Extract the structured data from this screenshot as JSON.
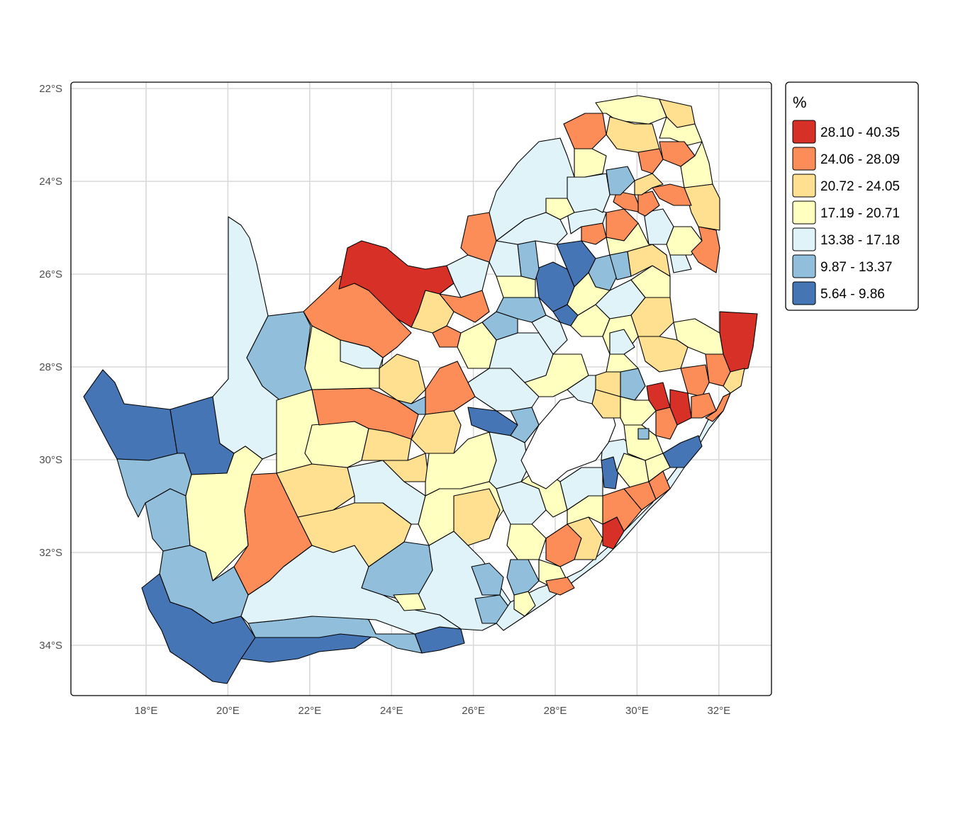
{
  "map": {
    "x_ticks": [
      "18°E",
      "20°E",
      "22°E",
      "24°E",
      "26°E",
      "28°E",
      "30°E",
      "32°E"
    ],
    "y_ticks": [
      "22°S",
      "24°S",
      "26°S",
      "28°S",
      "30°S",
      "32°S",
      "34°S"
    ],
    "x_tick_values": [
      18,
      20,
      22,
      24,
      26,
      28,
      30,
      32
    ],
    "y_tick_values": [
      -22,
      -24,
      -26,
      -28,
      -30,
      -32,
      -34
    ],
    "lon_range": [
      16.2,
      33.3
    ],
    "lat_range": [
      -35.1,
      -21.9
    ]
  },
  "legend": {
    "title": "%",
    "items": [
      {
        "label": "28.10 - 40.35",
        "color": "#d73027"
      },
      {
        "label": "24.06 - 28.09",
        "color": "#fc8d59"
      },
      {
        "label": "20.72 - 24.05",
        "color": "#fee090"
      },
      {
        "label": "17.19 - 20.71",
        "color": "#ffffbf"
      },
      {
        "label": "13.38 - 17.18",
        "color": "#e0f3f8"
      },
      {
        "label": "9.87 - 13.37",
        "color": "#91bfdb"
      },
      {
        "label": "5.64 - 9.86",
        "color": "#4575b4"
      }
    ]
  },
  "colors": {
    "border": "#000000",
    "grid": "#d9d9d9",
    "panel_border": "#000000"
  }
}
